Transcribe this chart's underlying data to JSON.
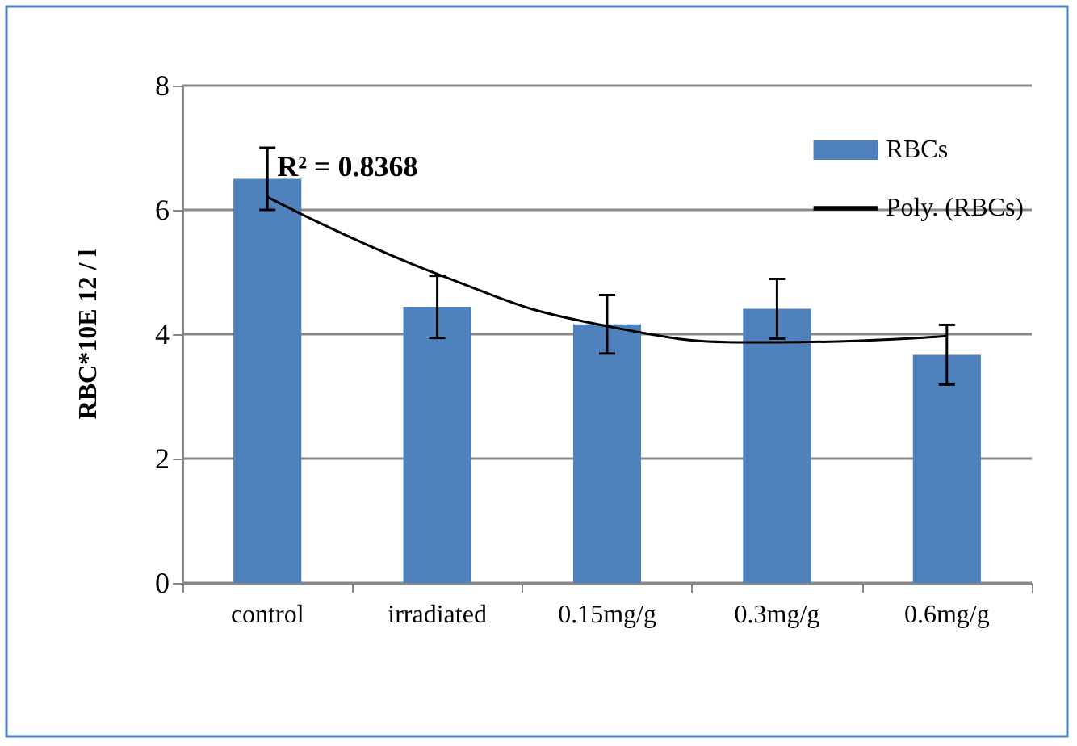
{
  "chart_data": {
    "type": "bar",
    "ylabel": "RBC*10E 12 / l",
    "categories": [
      "control",
      "irradiated",
      "0.15mg/g",
      "0.3mg/g",
      "0.6mg/g"
    ],
    "series": [
      {
        "name": "RBCs",
        "color": "#4f81bd",
        "values": [
          6.5,
          4.44,
          4.16,
          4.41,
          3.67
        ],
        "errors": [
          0.5,
          0.5,
          0.47,
          0.48,
          0.48
        ]
      },
      {
        "name": "Poly. (RBCs)",
        "type": "line",
        "color": "#000000",
        "x": [
          "control",
          "irradiated",
          "0.15mg/g",
          "0.3mg/g",
          "0.6mg/g"
        ],
        "values": [
          6.21,
          4.97,
          4.13,
          3.87,
          3.97
        ]
      }
    ],
    "annotations": [
      {
        "text": "R² = 0.8368",
        "x": "control",
        "y": 6.21
      }
    ],
    "ylim": [
      0,
      8
    ],
    "yticks": [
      0,
      2,
      4,
      6,
      8
    ],
    "grid": "y",
    "legend": "top right"
  }
}
